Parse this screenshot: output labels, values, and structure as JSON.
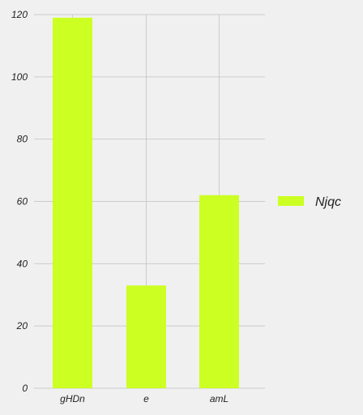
{
  "chart_data": {
    "type": "bar",
    "categories": [
      "gHDn",
      "e",
      "amL"
    ],
    "series": [
      {
        "name": "Njqc",
        "values": [
          119,
          33,
          62
        ]
      }
    ],
    "ylim": [
      0,
      120
    ],
    "yticks": [
      0,
      20,
      40,
      60,
      80,
      100,
      120
    ],
    "grid": true,
    "legend_position": "right",
    "colors": {
      "bar": "#ccff22",
      "grid": "#cbcbcb",
      "background": "#f0f0f0"
    }
  }
}
